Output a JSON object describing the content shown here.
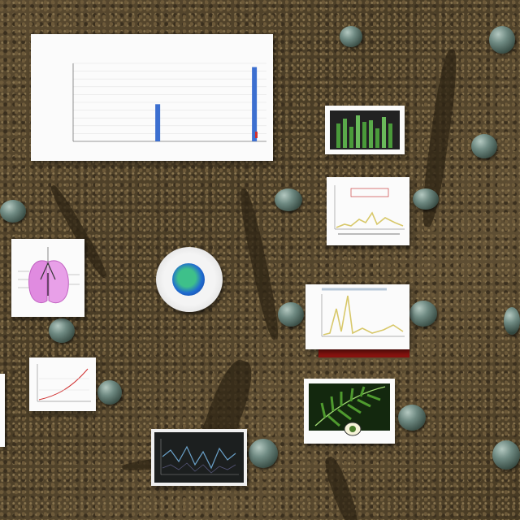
{
  "colors": {
    "soil": "#4f4029",
    "card": "#fbfbfb",
    "bar_blue": "#3c6fd0",
    "line_yellow": "#d8c86a",
    "red_accent": "#d03030",
    "leaf_green": "#2f6a1e",
    "lung_pink": "#e08be0"
  },
  "cards": {
    "main_chart": {
      "title": "",
      "subtitle": "",
      "xlabel": ""
    }
  },
  "chart_data": [
    {
      "type": "bar",
      "title": "",
      "categories": [
        "",
        "",
        "",
        "",
        "",
        "",
        "",
        ""
      ],
      "values": [
        0,
        0,
        0,
        5,
        0,
        0,
        0,
        10
      ],
      "ylim": [
        0,
        10.5
      ],
      "grid": true
    }
  ],
  "icons": {
    "center": "eye-emblem-icon",
    "lung": "lung-diagram-icon",
    "leaf": "fern-leaf-icon",
    "pebble": "pebble-icon"
  }
}
